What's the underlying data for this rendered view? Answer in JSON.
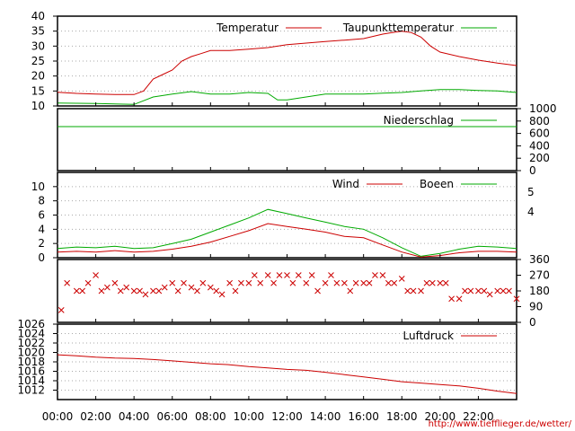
{
  "colors": {
    "red": "#cc0000",
    "green": "#00aa00",
    "grid": "#aaaaaa"
  },
  "footer": {
    "credit": "http://www.tiefflieger.de/wetter/"
  },
  "chart_data": [
    {
      "type": "line",
      "panel": "temperature",
      "x_unit": "hour",
      "xlim": [
        0,
        24
      ],
      "ylim": [
        10,
        40
      ],
      "yticks": [
        "40",
        "35",
        "30",
        "25",
        "20",
        "15",
        "10"
      ],
      "grid": true,
      "legend": "top-right",
      "series": [
        {
          "name": "Temperatur",
          "color": "#cc0000",
          "x": [
            0,
            1,
            2,
            3,
            4,
            4.5,
            5,
            5.5,
            6,
            6.5,
            7,
            7.5,
            8,
            9,
            10,
            11,
            12,
            13,
            14,
            15,
            16,
            17,
            17.5,
            18,
            18.5,
            19,
            19.5,
            20,
            21,
            22,
            23,
            24
          ],
          "y": [
            14.6,
            14.2,
            14,
            13.8,
            13.8,
            15,
            19,
            20.5,
            22,
            25,
            26.5,
            27.5,
            28.5,
            28.5,
            29,
            29.5,
            30.5,
            31,
            31.5,
            32,
            32.5,
            34,
            34.5,
            35,
            34.5,
            33,
            30,
            28,
            26.5,
            25.3,
            24.3,
            23.5
          ]
        },
        {
          "name": "Taupunkttemperatur",
          "color": "#00aa00",
          "x": [
            0,
            2,
            4,
            5,
            6,
            7,
            8,
            9,
            10,
            11,
            11.5,
            12,
            13,
            14,
            15,
            16,
            17,
            18,
            19,
            20,
            21,
            22,
            23,
            24
          ],
          "y": [
            11,
            10.8,
            10.5,
            13,
            14,
            14.8,
            14,
            14,
            14.5,
            14.2,
            12,
            12,
            13,
            14,
            14,
            14,
            14.3,
            14.5,
            15,
            15.5,
            15.5,
            15.2,
            15,
            14.5
          ]
        }
      ]
    },
    {
      "type": "line",
      "panel": "precipitation",
      "x_unit": "hour",
      "xlim": [
        0,
        24
      ],
      "ylim": [
        0,
        1000
      ],
      "yticks": [
        "1000",
        "800",
        "600",
        "400",
        "200",
        "0"
      ],
      "legend": "top-right",
      "series": [
        {
          "name": "Niederschlag",
          "color": "#00aa00",
          "x": [
            0,
            24
          ],
          "y": [
            710,
            710
          ]
        }
      ]
    },
    {
      "type": "line",
      "panel": "wind",
      "x_unit": "hour",
      "xlim": [
        0,
        24
      ],
      "ylim": [
        0,
        12
      ],
      "yticks": [
        "10",
        "8",
        "6",
        "4",
        "2",
        "0"
      ],
      "yticks_right": [
        "5",
        "4"
      ],
      "grid": true,
      "legend": "top-right",
      "series": [
        {
          "name": "Wind",
          "color": "#cc0000",
          "x": [
            0,
            1,
            2,
            3,
            4,
            5,
            6,
            7,
            8,
            9,
            10,
            11,
            12,
            13,
            14,
            15,
            16,
            17,
            18,
            19,
            20,
            21,
            22,
            23,
            24
          ],
          "y": [
            0.8,
            0.9,
            0.8,
            1,
            0.8,
            0.9,
            1.2,
            1.6,
            2.2,
            3,
            3.8,
            4.8,
            4.4,
            4,
            3.6,
            3,
            2.8,
            1.8,
            0.8,
            0.1,
            0.3,
            0.7,
            0.9,
            0.9,
            0.8
          ]
        },
        {
          "name": "Boeen",
          "color": "#00aa00",
          "x": [
            0,
            1,
            2,
            3,
            4,
            5,
            6,
            7,
            8,
            9,
            10,
            11,
            12,
            13,
            14,
            15,
            16,
            17,
            18,
            19,
            20,
            21,
            22,
            23,
            24
          ],
          "y": [
            1.3,
            1.5,
            1.4,
            1.6,
            1.3,
            1.4,
            2,
            2.6,
            3.6,
            4.6,
            5.6,
            6.8,
            6.2,
            5.6,
            5,
            4.4,
            4,
            2.8,
            1.4,
            0.2,
            0.6,
            1.2,
            1.6,
            1.5,
            1.3
          ]
        }
      ]
    },
    {
      "type": "scatter",
      "panel": "direction",
      "x_unit": "hour",
      "xlim": [
        0,
        24
      ],
      "ylim": [
        0,
        360
      ],
      "yticks": [
        "360",
        "270",
        "180",
        "90",
        "0"
      ],
      "series": [
        {
          "name": "",
          "color": "#cc0000",
          "x": [
            0.2,
            0.5,
            1,
            1.3,
            1.6,
            2,
            2.3,
            2.6,
            3,
            3.3,
            3.6,
            4,
            4.3,
            4.6,
            5,
            5.3,
            5.6,
            6,
            6.3,
            6.6,
            7,
            7.3,
            7.6,
            8,
            8.3,
            8.6,
            9,
            9.3,
            9.6,
            10,
            10.3,
            10.6,
            11,
            11.3,
            11.6,
            12,
            12.3,
            12.6,
            13,
            13.3,
            13.6,
            14,
            14.3,
            14.6,
            15,
            15.3,
            15.6,
            16,
            16.3,
            16.6,
            17,
            17.3,
            17.6,
            18,
            18.3,
            18.6,
            19,
            19.3,
            19.6,
            20,
            20.3,
            20.6,
            21,
            21.3,
            21.6,
            22,
            22.3,
            22.6,
            23,
            23.3,
            23.6,
            24
          ],
          "y": [
            70,
            225,
            180,
            180,
            225,
            270,
            180,
            200,
            225,
            180,
            200,
            180,
            180,
            160,
            180,
            180,
            200,
            225,
            180,
            225,
            200,
            180,
            225,
            200,
            180,
            160,
            225,
            180,
            225,
            225,
            270,
            225,
            270,
            225,
            270,
            270,
            225,
            270,
            225,
            270,
            180,
            225,
            270,
            225,
            225,
            180,
            225,
            225,
            225,
            270,
            270,
            225,
            225,
            250,
            180,
            180,
            180,
            225,
            225,
            225,
            225,
            135,
            135,
            180,
            180,
            180,
            180,
            160,
            180,
            180,
            180,
            135
          ]
        }
      ]
    },
    {
      "type": "line",
      "panel": "pressure",
      "x_unit": "hour",
      "xlim": [
        0,
        24
      ],
      "ylim": [
        1010,
        1026
      ],
      "yticks": [
        "1026",
        "1024",
        "1022",
        "1020",
        "1018",
        "1016",
        "1014",
        "1012"
      ],
      "xticks": [
        "00:00",
        "02:00",
        "04:00",
        "06:00",
        "08:00",
        "10:00",
        "12:00",
        "14:00",
        "16:00",
        "18:00",
        "20:00",
        "22:00"
      ],
      "grid": true,
      "legend": "top-right",
      "series": [
        {
          "name": "Luftdruck",
          "color": "#cc0000",
          "x": [
            0,
            1,
            2,
            3,
            4,
            5,
            6,
            7,
            8,
            9,
            10,
            11,
            12,
            13,
            14,
            15,
            16,
            17,
            18,
            19,
            20,
            21,
            22,
            23,
            24
          ],
          "y": [
            1019.5,
            1019.3,
            1019,
            1018.8,
            1018.7,
            1018.5,
            1018.2,
            1017.9,
            1017.6,
            1017.4,
            1017,
            1016.7,
            1016.4,
            1016.2,
            1015.8,
            1015.3,
            1014.8,
            1014.3,
            1013.8,
            1013.5,
            1013.2,
            1012.9,
            1012.4,
            1011.8,
            1011.3
          ]
        }
      ]
    }
  ]
}
